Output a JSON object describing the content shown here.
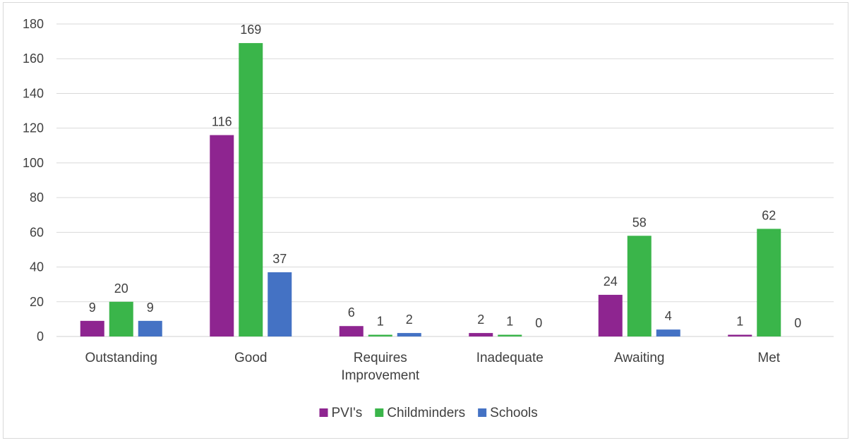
{
  "chart_data": {
    "type": "bar",
    "categories": [
      "Outstanding",
      "Good",
      "Requires Improvement",
      "Inadequate",
      "Awaiting",
      "Met"
    ],
    "series": [
      {
        "name": "PVI's",
        "values": [
          9,
          116,
          6,
          2,
          24,
          1
        ],
        "color": "#8e2590"
      },
      {
        "name": "Childminders",
        "values": [
          20,
          169,
          1,
          1,
          58,
          62
        ],
        "color": "#3ab54a"
      },
      {
        "name": "Schools",
        "values": [
          9,
          37,
          2,
          0,
          4,
          0
        ],
        "color": "#4472c4"
      }
    ],
    "ylim": [
      0,
      180
    ],
    "yticks": [
      0,
      20,
      40,
      60,
      80,
      100,
      120,
      140,
      160,
      180
    ],
    "grid": true,
    "legend": "bottom",
    "data_labels": true
  }
}
